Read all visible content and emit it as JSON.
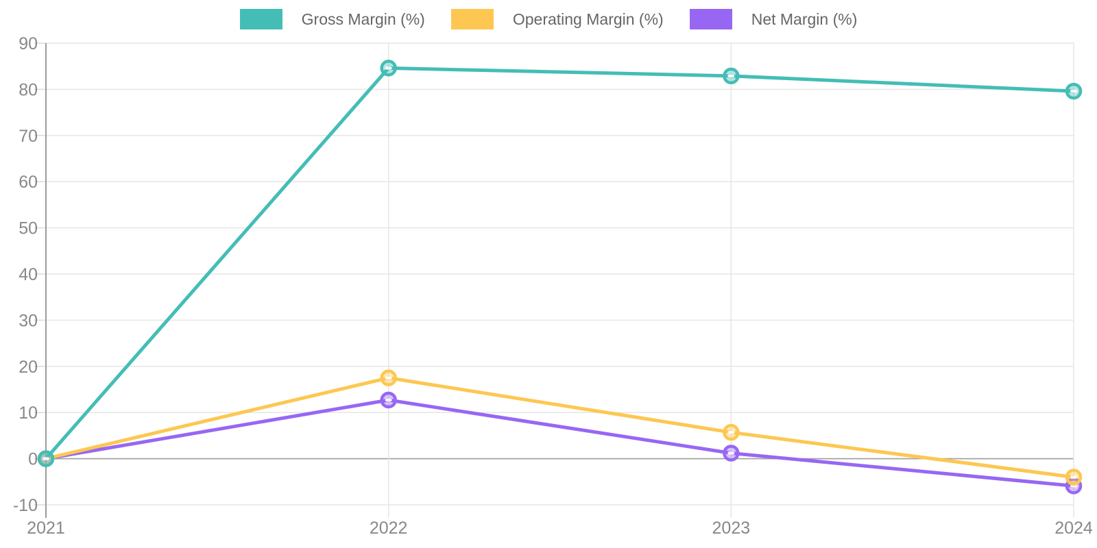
{
  "chart_data": {
    "type": "line",
    "x": [
      2021,
      2022,
      2023,
      2024
    ],
    "x_labels": [
      "2021",
      "2022",
      "2023",
      "2024"
    ],
    "series": [
      {
        "name": "Gross Margin (%)",
        "color": "#44BDB6",
        "values": [
          0,
          84.6,
          82.9,
          79.6
        ]
      },
      {
        "name": "Operating Margin (%)",
        "color": "#FDC751",
        "values": [
          0,
          17.5,
          5.7,
          -4.0
        ]
      },
      {
        "name": "Net Margin (%)",
        "color": "#9767F3",
        "values": [
          0,
          12.7,
          1.2,
          -5.9
        ]
      }
    ],
    "title": "",
    "xlabel": "",
    "ylabel": "",
    "ylim": [
      -10,
      90
    ],
    "y_ticks": [
      90,
      80,
      70,
      60,
      50,
      40,
      30,
      20,
      10,
      0,
      -10
    ],
    "grid": true,
    "legend_position": "top"
  },
  "colors": {
    "background": "#FFFFFF",
    "grid": "#E6E6E6",
    "axis": "#9B9B9B",
    "zero_line": "#A3A3A3",
    "tick_dash": "#DADADA",
    "tick_label": "#888888",
    "legend_text": "#666666"
  }
}
